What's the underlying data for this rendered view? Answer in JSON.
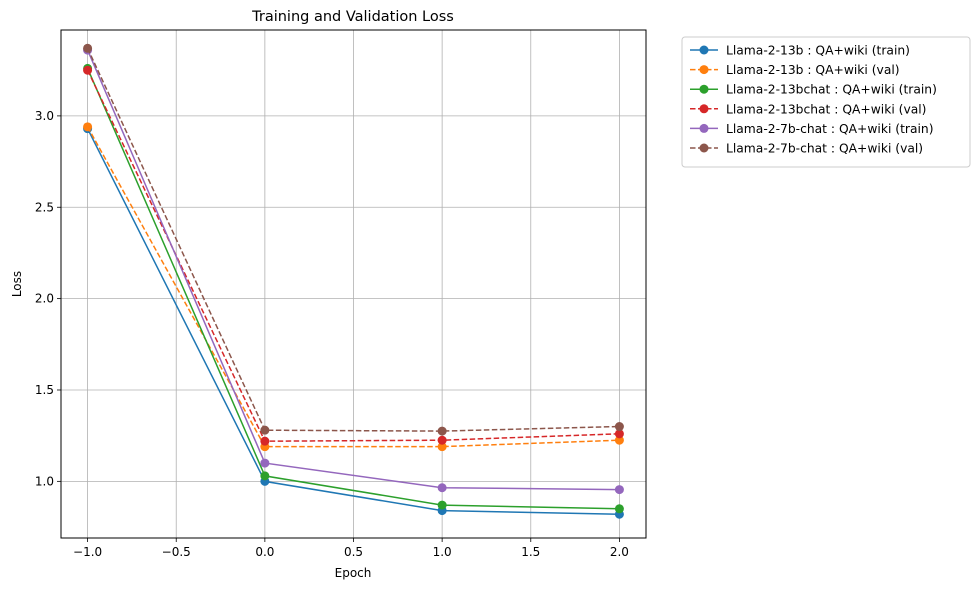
{
  "chart_data": {
    "type": "line",
    "title": "Training and Validation Loss",
    "xlabel": "Epoch",
    "ylabel": "Loss",
    "xlim": [
      -1.15,
      2.15
    ],
    "ylim": [
      0.69,
      3.47
    ],
    "xticks": [
      -1.0,
      -0.5,
      0.0,
      0.5,
      1.0,
      1.5,
      2.0
    ],
    "xtick_labels": [
      "−1.0",
      "−0.5",
      "0.0",
      "0.5",
      "1.0",
      "1.5",
      "2.0"
    ],
    "yticks": [
      1.0,
      1.5,
      2.0,
      2.5,
      3.0
    ],
    "ytick_labels": [
      "1.0",
      "1.5",
      "2.0",
      "2.5",
      "3.0"
    ],
    "grid": true,
    "legend_position": "outside top-right",
    "x": [
      -1,
      0,
      1,
      2
    ],
    "series": [
      {
        "name": "Llama-2-13b : QA+wiki (train)",
        "values": [
          2.93,
          1.0,
          0.84,
          0.82
        ],
        "color": "#1f77b4",
        "dashed": false
      },
      {
        "name": "Llama-2-13b : QA+wiki (val)",
        "values": [
          2.94,
          1.19,
          1.19,
          1.225
        ],
        "color": "#ff7f0e",
        "dashed": true
      },
      {
        "name": "Llama-2-13bchat : QA+wiki (train)",
        "values": [
          3.26,
          1.03,
          0.87,
          0.85
        ],
        "color": "#2ca02c",
        "dashed": false
      },
      {
        "name": "Llama-2-13bchat : QA+wiki (val)",
        "values": [
          3.25,
          1.22,
          1.225,
          1.26
        ],
        "color": "#d62728",
        "dashed": true
      },
      {
        "name": "Llama-2-7b-chat : QA+wiki (train)",
        "values": [
          3.36,
          1.1,
          0.965,
          0.955
        ],
        "color": "#9467bd",
        "dashed": false
      },
      {
        "name": "Llama-2-7b-chat : QA+wiki (val)",
        "values": [
          3.37,
          1.28,
          1.275,
          1.3
        ],
        "color": "#8c564b",
        "dashed": true
      }
    ]
  }
}
